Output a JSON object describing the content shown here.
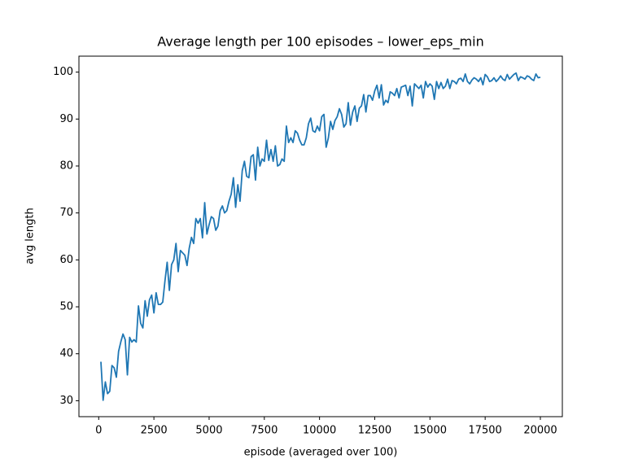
{
  "chart_data": {
    "type": "line",
    "title": "Average length per 100 episodes – lower_eps_min",
    "xlabel": "episode (averaged over 100)",
    "ylabel": "avg length",
    "xlim": [
      -895,
      20995
    ],
    "ylim": [
      26.6,
      103.4
    ],
    "xticks": [
      0,
      2500,
      5000,
      7500,
      10000,
      12500,
      15000,
      17500,
      20000
    ],
    "yticks": [
      30,
      40,
      50,
      60,
      70,
      80,
      90,
      100
    ],
    "grid": false,
    "series": [
      {
        "color": "#1f77b4",
        "x": [
          100,
          200,
          300,
          400,
          500,
          600,
          700,
          800,
          900,
          1000,
          1100,
          1200,
          1300,
          1400,
          1500,
          1600,
          1700,
          1800,
          1900,
          2000,
          2100,
          2200,
          2300,
          2400,
          2500,
          2600,
          2700,
          2800,
          2900,
          3000,
          3100,
          3200,
          3300,
          3400,
          3500,
          3600,
          3700,
          3800,
          3900,
          4000,
          4100,
          4200,
          4300,
          4400,
          4500,
          4600,
          4700,
          4800,
          4900,
          5000,
          5100,
          5200,
          5300,
          5400,
          5500,
          5600,
          5700,
          5800,
          5900,
          6000,
          6100,
          6200,
          6300,
          6400,
          6500,
          6600,
          6700,
          6800,
          6900,
          7000,
          7100,
          7200,
          7300,
          7400,
          7500,
          7600,
          7700,
          7800,
          7900,
          8000,
          8100,
          8200,
          8300,
          8400,
          8500,
          8600,
          8700,
          8800,
          8900,
          9000,
          9100,
          9200,
          9300,
          9400,
          9500,
          9600,
          9700,
          9800,
          9900,
          10000,
          10100,
          10200,
          10300,
          10400,
          10500,
          10600,
          10700,
          10800,
          10900,
          11000,
          11100,
          11200,
          11300,
          11400,
          11500,
          11600,
          11700,
          11800,
          11900,
          12000,
          12100,
          12200,
          12300,
          12400,
          12500,
          12600,
          12700,
          12800,
          12900,
          13000,
          13100,
          13200,
          13300,
          13400,
          13500,
          13600,
          13700,
          13800,
          13900,
          14000,
          14100,
          14200,
          14300,
          14400,
          14500,
          14600,
          14700,
          14800,
          14900,
          15000,
          15100,
          15200,
          15300,
          15400,
          15500,
          15600,
          15700,
          15800,
          15900,
          16000,
          16100,
          16200,
          16300,
          16400,
          16500,
          16600,
          16700,
          16800,
          16900,
          17000,
          17100,
          17200,
          17300,
          17400,
          17500,
          17600,
          17700,
          17800,
          17900,
          18000,
          18100,
          18200,
          18300,
          18400,
          18500,
          18600,
          18700,
          18800,
          18900,
          19000,
          19100,
          19200,
          19300,
          19400,
          19500,
          19600,
          19700,
          19800,
          19900,
          20000
        ],
        "values": [
          38.3,
          30.1,
          34,
          31.5,
          32,
          37.5,
          37,
          35,
          40.5,
          42.5,
          44.2,
          43,
          35.5,
          43.5,
          42.5,
          43,
          42.5,
          50.2,
          46.5,
          45.5,
          51.3,
          48,
          51.5,
          52.5,
          48.7,
          53,
          50.5,
          50.5,
          51,
          55.5,
          59.5,
          53.5,
          59,
          60,
          63.5,
          57.5,
          62,
          61.5,
          61,
          58.8,
          62.5,
          64.8,
          63.5,
          68.8,
          67.8,
          68.8,
          64.7,
          72.2,
          65.5,
          67.5,
          69.2,
          68.8,
          66.3,
          67.2,
          70.5,
          71.5,
          70,
          70.5,
          72.5,
          74,
          77.5,
          71.2,
          76,
          72.5,
          79,
          81,
          77.8,
          77.5,
          82,
          82.4,
          77,
          84,
          80,
          81.5,
          81,
          85.5,
          81.2,
          83.5,
          81,
          84.3,
          80,
          80.3,
          81.5,
          81,
          88.5,
          85,
          86,
          85,
          87.5,
          87,
          85.5,
          84.5,
          84.5,
          86,
          89,
          90.2,
          87.5,
          87.2,
          88.5,
          87.5,
          90.5,
          91,
          84,
          86,
          89.5,
          87.8,
          89.7,
          90.5,
          92.2,
          91,
          88.3,
          89,
          93.5,
          88.7,
          91.5,
          92.8,
          89.5,
          92.3,
          92.8,
          95.2,
          91.5,
          95,
          95,
          94,
          96,
          97.2,
          94.5,
          97.3,
          93,
          94,
          93.5,
          95.8,
          95.5,
          95,
          96.5,
          94.5,
          96.8,
          97,
          97.2,
          95,
          97,
          92.8,
          97.5,
          97,
          96.5,
          97.2,
          94.5,
          98,
          96.8,
          97.5,
          97,
          94.2,
          98,
          96.5,
          97.8,
          96.5,
          97,
          98.5,
          96.5,
          98.2,
          98,
          97.5,
          98.5,
          98.7,
          98,
          99.6,
          98,
          97.5,
          98.3,
          98.8,
          98.5,
          98,
          98.8,
          97.3,
          99.5,
          99,
          98,
          98.2,
          98.8,
          98,
          98.5,
          99.2,
          98.5,
          98.2,
          99.5,
          98.5,
          99,
          99.5,
          99.8,
          98.2,
          99,
          98.8,
          98.5,
          99.2,
          99,
          98.5,
          98.2,
          99.6,
          98.8,
          98.9
        ]
      }
    ]
  }
}
